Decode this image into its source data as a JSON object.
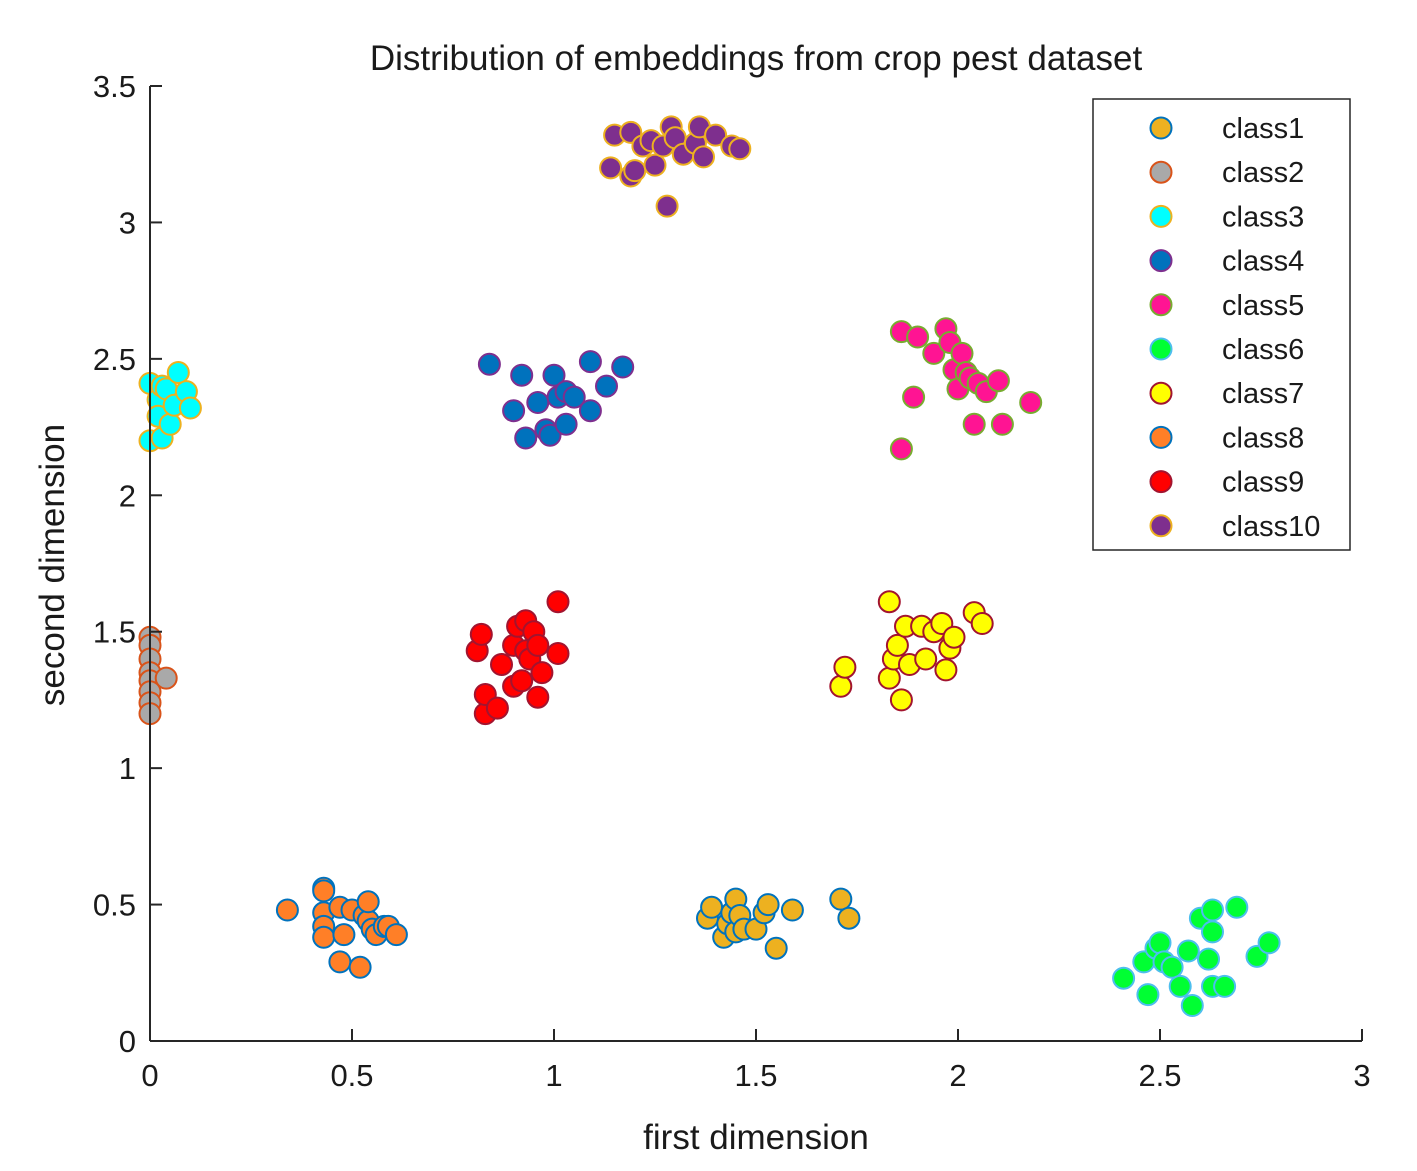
{
  "chart_data": {
    "type": "scatter",
    "title": "Distribution of embeddings from crop pest dataset",
    "xlabel": "first dimension",
    "ylabel": "second dimension",
    "xlim": [
      0,
      3
    ],
    "ylim": [
      0,
      3.5
    ],
    "xticks": [
      0,
      0.5,
      1,
      1.5,
      2,
      2.5,
      3
    ],
    "xtick_labels": [
      "0",
      "0.5",
      "1",
      "1.5",
      "2",
      "2.5",
      "3"
    ],
    "yticks": [
      0,
      0.5,
      1,
      1.5,
      2,
      2.5,
      3,
      3.5
    ],
    "ytick_labels": [
      "0",
      "0.5",
      "1",
      "1.5",
      "2",
      "2.5",
      "3",
      "3.5"
    ],
    "grid": false,
    "legend_position": "top-right",
    "series": [
      {
        "name": "class1",
        "fill": "#EDB120",
        "edge": "#0072BD",
        "points": [
          [
            1.38,
            0.45
          ],
          [
            1.39,
            0.49
          ],
          [
            1.42,
            0.38
          ],
          [
            1.43,
            0.43
          ],
          [
            1.44,
            0.47
          ],
          [
            1.45,
            0.52
          ],
          [
            1.45,
            0.4
          ],
          [
            1.46,
            0.46
          ],
          [
            1.47,
            0.41
          ],
          [
            1.5,
            0.41
          ],
          [
            1.52,
            0.47
          ],
          [
            1.53,
            0.5
          ],
          [
            1.55,
            0.34
          ],
          [
            1.59,
            0.48
          ],
          [
            1.71,
            0.52
          ],
          [
            1.73,
            0.45
          ]
        ]
      },
      {
        "name": "class2",
        "fill": "#A9A9A9",
        "edge": "#D95319",
        "points": [
          [
            0.0,
            1.48
          ],
          [
            0.0,
            1.45
          ],
          [
            0.0,
            1.4
          ],
          [
            0.0,
            1.35
          ],
          [
            0.0,
            1.32
          ],
          [
            0.0,
            1.28
          ],
          [
            0.0,
            1.24
          ],
          [
            0.0,
            1.2
          ],
          [
            0.04,
            1.33
          ]
        ]
      },
      {
        "name": "class3",
        "fill": "#00FFFF",
        "edge": "#EDB120",
        "points": [
          [
            0.0,
            2.41
          ],
          [
            0.0,
            2.2
          ],
          [
            0.02,
            2.35
          ],
          [
            0.02,
            2.29
          ],
          [
            0.03,
            2.4
          ],
          [
            0.03,
            2.21
          ],
          [
            0.04,
            2.39
          ],
          [
            0.05,
            2.26
          ],
          [
            0.06,
            2.33
          ],
          [
            0.07,
            2.45
          ],
          [
            0.09,
            2.38
          ],
          [
            0.1,
            2.32
          ]
        ]
      },
      {
        "name": "class4",
        "fill": "#0072BD",
        "edge": "#7E2F8E",
        "points": [
          [
            0.84,
            2.48
          ],
          [
            0.9,
            2.31
          ],
          [
            0.92,
            2.44
          ],
          [
            0.93,
            2.21
          ],
          [
            0.96,
            2.34
          ],
          [
            0.98,
            2.24
          ],
          [
            0.99,
            2.22
          ],
          [
            1.0,
            2.44
          ],
          [
            1.01,
            2.36
          ],
          [
            1.03,
            2.38
          ],
          [
            1.03,
            2.26
          ],
          [
            1.05,
            2.36
          ],
          [
            1.09,
            2.49
          ],
          [
            1.09,
            2.31
          ],
          [
            1.13,
            2.4
          ],
          [
            1.17,
            2.47
          ]
        ]
      },
      {
        "name": "class5",
        "fill": "#FF1493",
        "edge": "#77AC30",
        "points": [
          [
            1.86,
            2.6
          ],
          [
            1.86,
            2.17
          ],
          [
            1.89,
            2.36
          ],
          [
            1.9,
            2.58
          ],
          [
            1.94,
            2.52
          ],
          [
            1.97,
            2.61
          ],
          [
            1.98,
            2.56
          ],
          [
            1.99,
            2.46
          ],
          [
            2.0,
            2.39
          ],
          [
            2.01,
            2.52
          ],
          [
            2.02,
            2.45
          ],
          [
            2.03,
            2.43
          ],
          [
            2.04,
            2.26
          ],
          [
            2.05,
            2.41
          ],
          [
            2.07,
            2.38
          ],
          [
            2.1,
            2.42
          ],
          [
            2.11,
            2.26
          ],
          [
            2.18,
            2.34
          ]
        ]
      },
      {
        "name": "class6",
        "fill": "#00FF33",
        "edge": "#4DBEEE",
        "points": [
          [
            2.41,
            0.23
          ],
          [
            2.46,
            0.29
          ],
          [
            2.47,
            0.17
          ],
          [
            2.49,
            0.34
          ],
          [
            2.5,
            0.36
          ],
          [
            2.51,
            0.29
          ],
          [
            2.53,
            0.27
          ],
          [
            2.55,
            0.2
          ],
          [
            2.57,
            0.33
          ],
          [
            2.58,
            0.13
          ],
          [
            2.6,
            0.45
          ],
          [
            2.62,
            0.3
          ],
          [
            2.63,
            0.48
          ],
          [
            2.63,
            0.4
          ],
          [
            2.63,
            0.2
          ],
          [
            2.66,
            0.2
          ],
          [
            2.69,
            0.49
          ],
          [
            2.74,
            0.31
          ],
          [
            2.77,
            0.36
          ]
        ]
      },
      {
        "name": "class7",
        "fill": "#FFFF00",
        "edge": "#A2142F",
        "points": [
          [
            1.71,
            1.3
          ],
          [
            1.72,
            1.37
          ],
          [
            1.83,
            1.61
          ],
          [
            1.83,
            1.33
          ],
          [
            1.84,
            1.4
          ],
          [
            1.85,
            1.45
          ],
          [
            1.86,
            1.25
          ],
          [
            1.87,
            1.52
          ],
          [
            1.88,
            1.38
          ],
          [
            1.91,
            1.52
          ],
          [
            1.92,
            1.4
          ],
          [
            1.94,
            1.5
          ],
          [
            1.96,
            1.53
          ],
          [
            1.97,
            1.36
          ],
          [
            1.98,
            1.44
          ],
          [
            1.99,
            1.48
          ],
          [
            2.04,
            1.57
          ],
          [
            2.06,
            1.53
          ]
        ]
      },
      {
        "name": "class8",
        "fill": "#FF7F27",
        "edge": "#0072BD",
        "points": [
          [
            0.34,
            0.48
          ],
          [
            0.43,
            0.56
          ],
          [
            0.43,
            0.55
          ],
          [
            0.43,
            0.47
          ],
          [
            0.43,
            0.42
          ],
          [
            0.43,
            0.38
          ],
          [
            0.47,
            0.29
          ],
          [
            0.47,
            0.49
          ],
          [
            0.48,
            0.39
          ],
          [
            0.5,
            0.48
          ],
          [
            0.52,
            0.27
          ],
          [
            0.53,
            0.46
          ],
          [
            0.54,
            0.44
          ],
          [
            0.54,
            0.51
          ],
          [
            0.55,
            0.41
          ],
          [
            0.56,
            0.39
          ],
          [
            0.58,
            0.42
          ],
          [
            0.59,
            0.42
          ],
          [
            0.61,
            0.39
          ]
        ]
      },
      {
        "name": "class9",
        "fill": "#FF0000",
        "edge": "#A2142F",
        "points": [
          [
            0.81,
            1.43
          ],
          [
            0.82,
            1.49
          ],
          [
            0.83,
            1.2
          ],
          [
            0.83,
            1.27
          ],
          [
            0.86,
            1.22
          ],
          [
            0.87,
            1.38
          ],
          [
            0.9,
            1.3
          ],
          [
            0.9,
            1.45
          ],
          [
            0.91,
            1.52
          ],
          [
            0.92,
            1.32
          ],
          [
            0.93,
            1.43
          ],
          [
            0.93,
            1.54
          ],
          [
            0.94,
            1.4
          ],
          [
            0.95,
            1.5
          ],
          [
            0.96,
            1.26
          ],
          [
            0.96,
            1.45
          ],
          [
            0.97,
            1.35
          ],
          [
            1.01,
            1.42
          ],
          [
            1.01,
            1.61
          ]
        ]
      },
      {
        "name": "class10",
        "fill": "#7E2F8E",
        "edge": "#EDB120",
        "points": [
          [
            1.14,
            3.2
          ],
          [
            1.15,
            3.32
          ],
          [
            1.19,
            3.33
          ],
          [
            1.19,
            3.17
          ],
          [
            1.2,
            3.19
          ],
          [
            1.22,
            3.28
          ],
          [
            1.24,
            3.3
          ],
          [
            1.25,
            3.21
          ],
          [
            1.27,
            3.28
          ],
          [
            1.28,
            3.06
          ],
          [
            1.29,
            3.35
          ],
          [
            1.3,
            3.31
          ],
          [
            1.32,
            3.25
          ],
          [
            1.35,
            3.29
          ],
          [
            1.36,
            3.35
          ],
          [
            1.37,
            3.24
          ],
          [
            1.4,
            3.32
          ],
          [
            1.44,
            3.28
          ],
          [
            1.46,
            3.27
          ]
        ]
      }
    ]
  }
}
